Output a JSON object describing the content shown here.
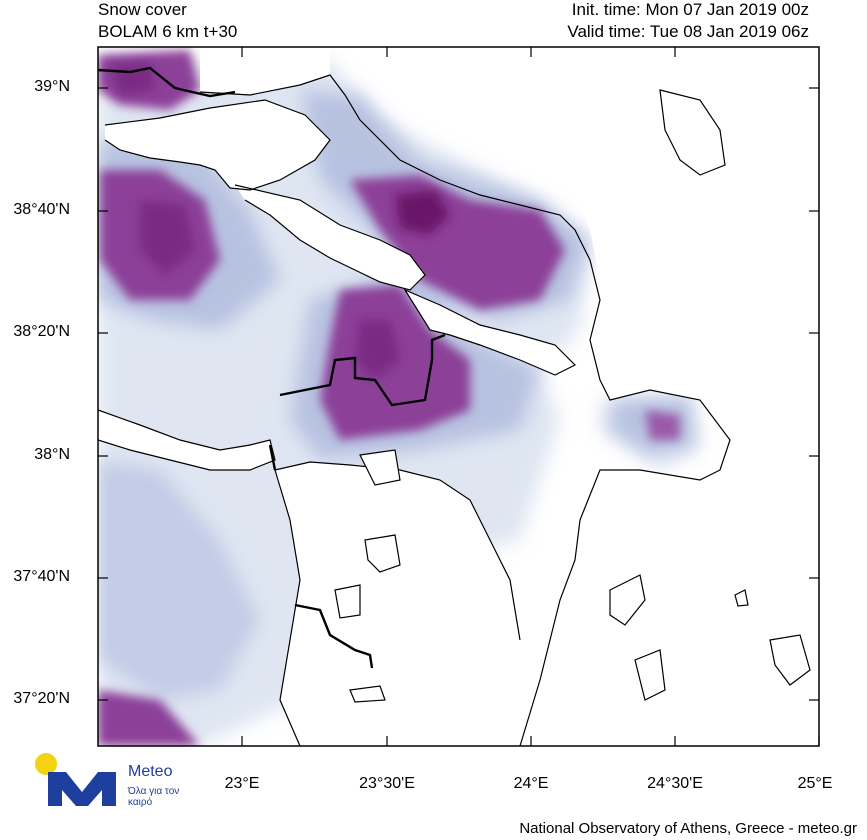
{
  "header": {
    "field": "Snow cover",
    "model": "BOLAM 6 km t+30",
    "init_time": "Init. time: Mon 07 Jan 2019 00z",
    "valid_time": "Valid time: Tue 08 Jan 2019 06z"
  },
  "map": {
    "region": "Central Greece / Attica / Euboea",
    "lat_labels": [
      "39°N",
      "38°40'N",
      "38°20'N",
      "38°N",
      "37°40'N",
      "37°20'N"
    ],
    "lon_labels": [
      "23°E",
      "23°30'E",
      "24°E",
      "24°30'E",
      "25°E"
    ],
    "colors": {
      "background": "#ffffff",
      "snow_light": "#dde5f1",
      "snow_medium": "#a9b6d9",
      "snow_heavy": "#8c3f98",
      "snow_max": "#6a1468",
      "coastline": "#000000"
    }
  },
  "logo": {
    "name": "Meteo",
    "tagline": "Όλα για τον καιρό",
    "colors": {
      "circle": "#f5d20f",
      "letter": "#1f3f9e"
    }
  },
  "footer": "National Observatory of Athens, Greece - meteo.gr"
}
